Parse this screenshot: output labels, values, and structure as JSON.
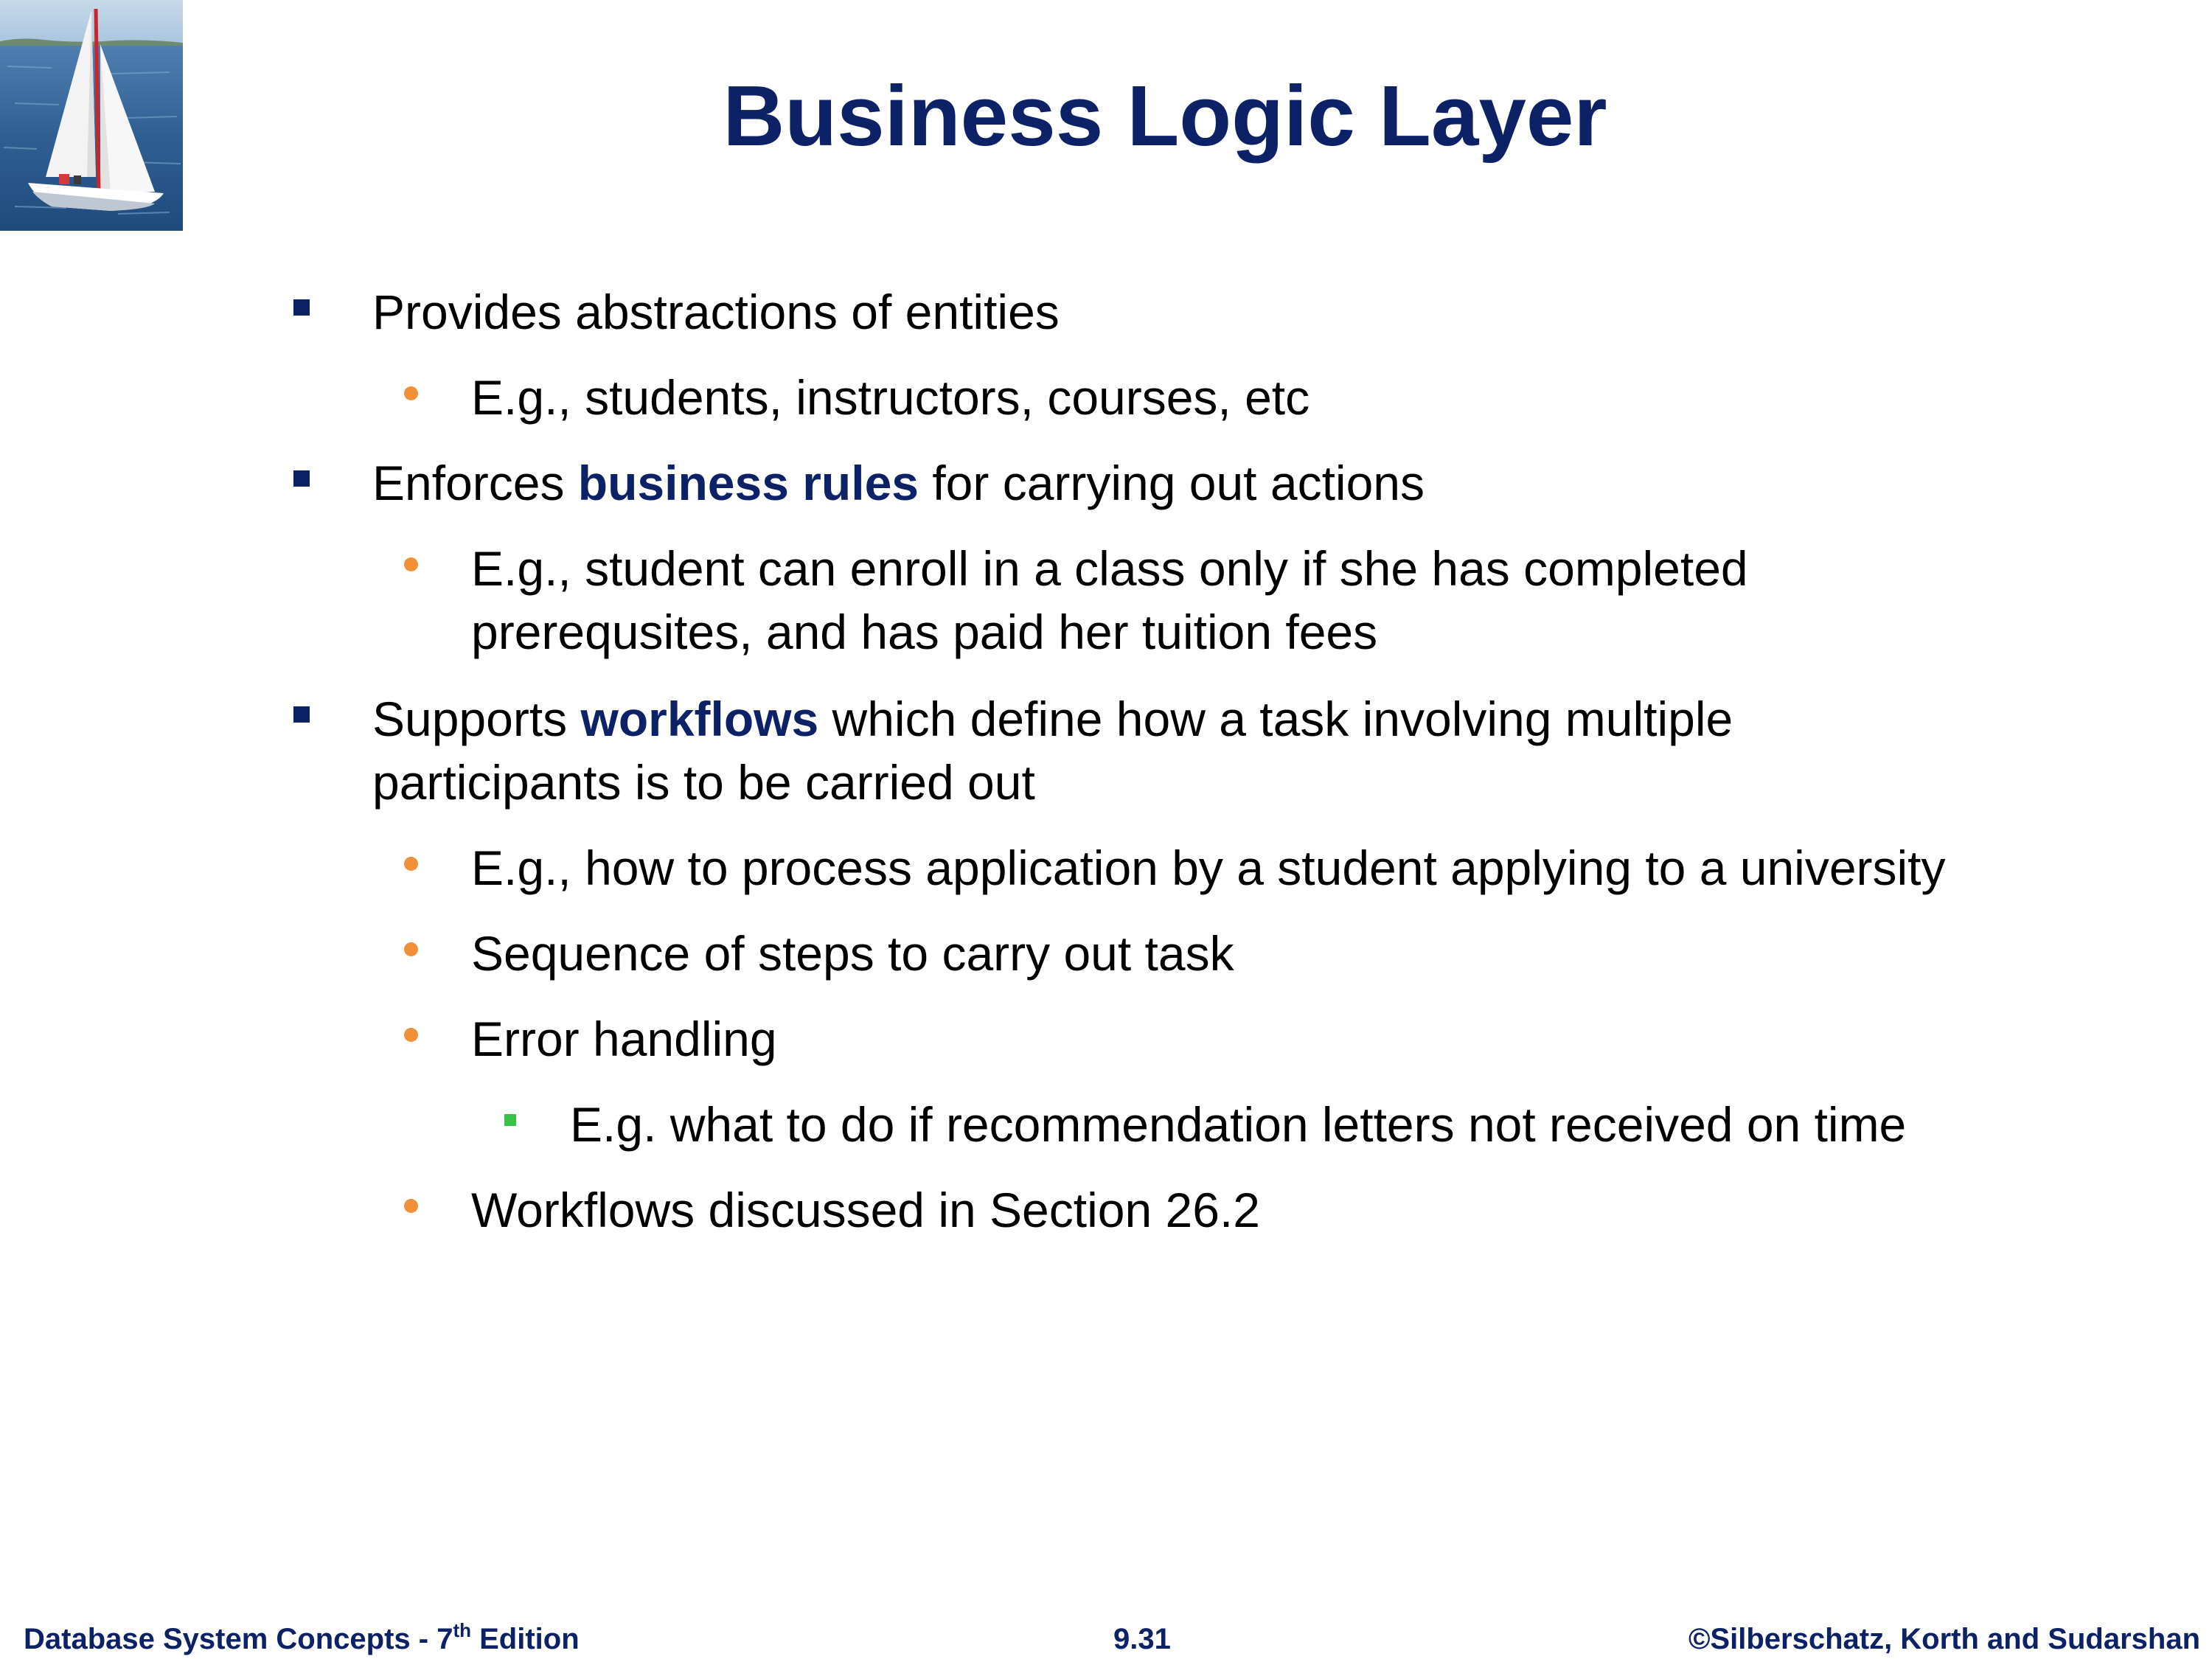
{
  "slide": {
    "title": "Business Logic Layer",
    "colors": {
      "title": "#0d2167",
      "keyword": "#0d2167",
      "level1_marker": "#0d2167",
      "level2_marker": "#f0913a",
      "level3_marker": "#39c24a",
      "body_text": "#000000",
      "footer": "#0d2167"
    },
    "logo_icon": "sailboat-icon",
    "bullets": [
      {
        "level": 1,
        "lines": [
          [
            {
              "text": "Provides abstractions of entities"
            }
          ]
        ]
      },
      {
        "level": 2,
        "lines": [
          [
            {
              "text": "E.g., students, instructors, courses, etc"
            }
          ]
        ]
      },
      {
        "level": 1,
        "lines": [
          [
            {
              "text": "Enforces "
            },
            {
              "text": "business rules",
              "emphasis": true
            },
            {
              "text": " for carrying out actions"
            }
          ]
        ]
      },
      {
        "level": 2,
        "lines": [
          [
            {
              "text": "E.g., student can enroll in a class only if she has completed"
            }
          ],
          [
            {
              "text": "prerequsites, and has paid her tuition fees"
            }
          ]
        ]
      },
      {
        "level": 1,
        "lines": [
          [
            {
              "text": "Supports "
            },
            {
              "text": "workflows",
              "emphasis": true
            },
            {
              "text": " which define how a task involving multiple"
            }
          ],
          [
            {
              "text": "participants is to be carried out"
            }
          ]
        ]
      },
      {
        "level": 2,
        "lines": [
          [
            {
              "text": "E.g., how to process application by a student applying to a university"
            }
          ]
        ]
      },
      {
        "level": 2,
        "lines": [
          [
            {
              "text": "Sequence of steps to carry out task"
            }
          ]
        ]
      },
      {
        "level": 2,
        "lines": [
          [
            {
              "text": "Error handling"
            }
          ]
        ]
      },
      {
        "level": 3,
        "lines": [
          [
            {
              "text": "E.g. what to do if recommendation letters not received on time"
            }
          ]
        ]
      },
      {
        "level": 2,
        "lines": [
          [
            {
              "text": "Workflows discussed in Section 26.2"
            }
          ]
        ]
      }
    ]
  },
  "footer": {
    "left_prefix": "Database System Concepts - 7",
    "left_superscript": "th",
    "left_suffix": " Edition",
    "center": "9.31",
    "right": "©Silberschatz, Korth and Sudarshan"
  }
}
